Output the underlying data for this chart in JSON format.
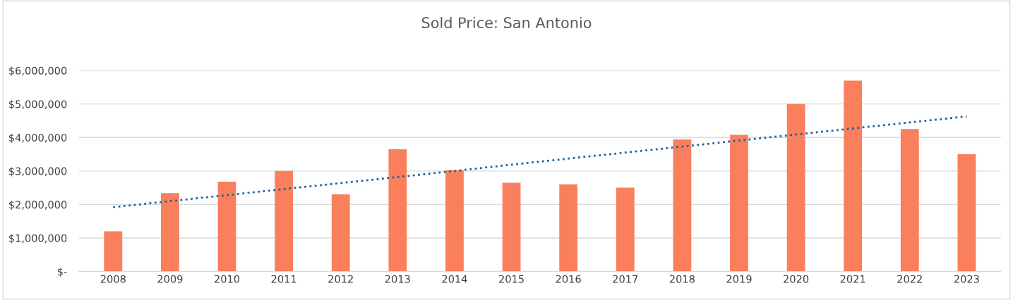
{
  "chart_data": {
    "type": "bar",
    "title": "Sold Price: San Antonio",
    "categories": [
      "2008",
      "2009",
      "2010",
      "2011",
      "2012",
      "2013",
      "2014",
      "2015",
      "2016",
      "2017",
      "2018",
      "2019",
      "2020",
      "2021",
      "2022",
      "2023"
    ],
    "series": [
      {
        "color": "#fa7f5c",
        "values": [
          1200000,
          2340000,
          2680000,
          3000000,
          2300000,
          3650000,
          3030000,
          2650000,
          2600000,
          2500000,
          3940000,
          4080000,
          5000000,
          5700000,
          4250000,
          3500000
        ]
      },
      {
        "type": "line",
        "color": "#1f5f9f",
        "line_style": "dotted",
        "values": [
          1920000,
          2100000,
          2280000,
          2460000,
          2640000,
          2820000,
          3000000,
          3190000,
          3370000,
          3550000,
          3730000,
          3910000,
          4090000,
          4270000,
          4450000,
          4630000
        ]
      }
    ],
    "ylim": [
      0,
      6000000
    ],
    "yticks": [
      {
        "value": 0,
        "label": "$-"
      },
      {
        "value": 1000000,
        "label": "$1,000,000"
      },
      {
        "value": 2000000,
        "label": "$2,000,000"
      },
      {
        "value": 3000000,
        "label": "$3,000,000"
      },
      {
        "value": 4000000,
        "label": "$4,000,000"
      },
      {
        "value": 5000000,
        "label": "$5,000,000"
      },
      {
        "value": 6000000,
        "label": "$6,000,000"
      }
    ],
    "grid": "y"
  }
}
